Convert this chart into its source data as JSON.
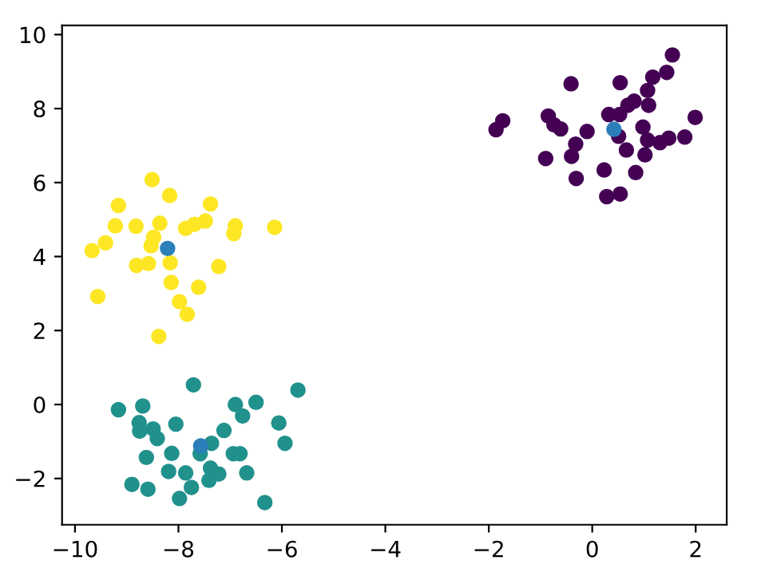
{
  "chart_data": {
    "type": "scatter",
    "marker": "circle",
    "xlim": [
      -10.25,
      2.6
    ],
    "ylim": [
      -3.25,
      10.25
    ],
    "xticks": [
      -10,
      -8,
      -6,
      -4,
      -2,
      0,
      2
    ],
    "yticks": [
      -2,
      0,
      2,
      4,
      6,
      8,
      10
    ],
    "grid": false,
    "legend": false,
    "series": [
      {
        "color": "#440154",
        "x": [
          1.55,
          -0.41,
          0.54,
          1.17,
          1.44,
          1.07,
          0.81,
          0.69,
          1.09,
          0.32,
          0.53,
          -0.85,
          -1.73,
          -1.86,
          -0.74,
          -0.61,
          -0.1,
          1.99,
          0.98,
          0.51,
          1.07,
          1.31,
          1.48,
          1.79,
          -0.32,
          -0.9,
          -0.4,
          0.66,
          1.02,
          -0.31,
          0.23,
          0.84,
          0.28,
          0.54
        ],
        "values": [
          9.45,
          8.67,
          8.7,
          8.85,
          8.98,
          8.49,
          8.2,
          8.09,
          8.09,
          7.84,
          7.84,
          7.8,
          7.67,
          7.43,
          7.56,
          7.45,
          7.38,
          7.76,
          7.5,
          7.25,
          7.15,
          7.08,
          7.2,
          7.23,
          7.04,
          6.65,
          6.71,
          6.88,
          6.75,
          6.11,
          6.34,
          6.27,
          5.62,
          5.69
        ]
      },
      {
        "color": "#fde725",
        "x": [
          -8.51,
          -8.17,
          -9.16,
          -7.38,
          -9.22,
          -8.82,
          -8.36,
          -7.86,
          -7.69,
          -7.48,
          -6.9,
          -6.93,
          -6.14,
          -9.41,
          -9.67,
          -8.48,
          -8.53,
          null,
          -8.81,
          -8.58,
          -8.16,
          -7.22,
          -8.14,
          -7.61,
          -9.56,
          -7.98,
          -7.83,
          null,
          -8.38
        ],
        "values": [
          6.08,
          5.65,
          5.38,
          5.42,
          4.83,
          4.82,
          4.9,
          4.76,
          4.87,
          4.96,
          4.83,
          4.62,
          4.79,
          4.37,
          4.16,
          4.52,
          4.29,
          null,
          3.76,
          3.81,
          3.83,
          3.73,
          3.3,
          3.17,
          2.92,
          2.78,
          2.44,
          null,
          1.84
        ]
      },
      {
        "color": "#21918c",
        "x": [
          -7.71,
          -5.69,
          -9.16,
          -8.69,
          -6.9,
          -6.5,
          -6.76,
          -8.76,
          -8.75,
          -8.49,
          -8.41,
          -8.05,
          -6.06,
          -7.12,
          -5.94,
          null,
          -7.36,
          -7.58,
          -8.62,
          -8.13,
          -6.94,
          -6.81,
          -8.19,
          -7.86,
          -7.38,
          -7.22,
          -7.41,
          -6.68,
          -8.9,
          -8.59,
          -7.75,
          -7.98,
          -6.33
        ],
        "values": [
          0.53,
          0.39,
          -0.14,
          -0.04,
          0.0,
          0.06,
          -0.31,
          -0.49,
          -0.72,
          -0.66,
          -0.92,
          -0.53,
          -0.5,
          -0.7,
          -1.05,
          null,
          -1.05,
          -1.33,
          -1.43,
          -1.32,
          -1.33,
          -1.33,
          -1.81,
          -1.85,
          -1.72,
          -1.88,
          -2.05,
          -1.85,
          -2.16,
          -2.29,
          -2.24,
          -2.54,
          -2.65
        ]
      },
      {
        "color": "#2c7fb8",
        "x": [
          0.42,
          -8.21,
          -7.57
        ],
        "values": [
          7.44,
          4.22,
          -1.12
        ]
      }
    ]
  }
}
